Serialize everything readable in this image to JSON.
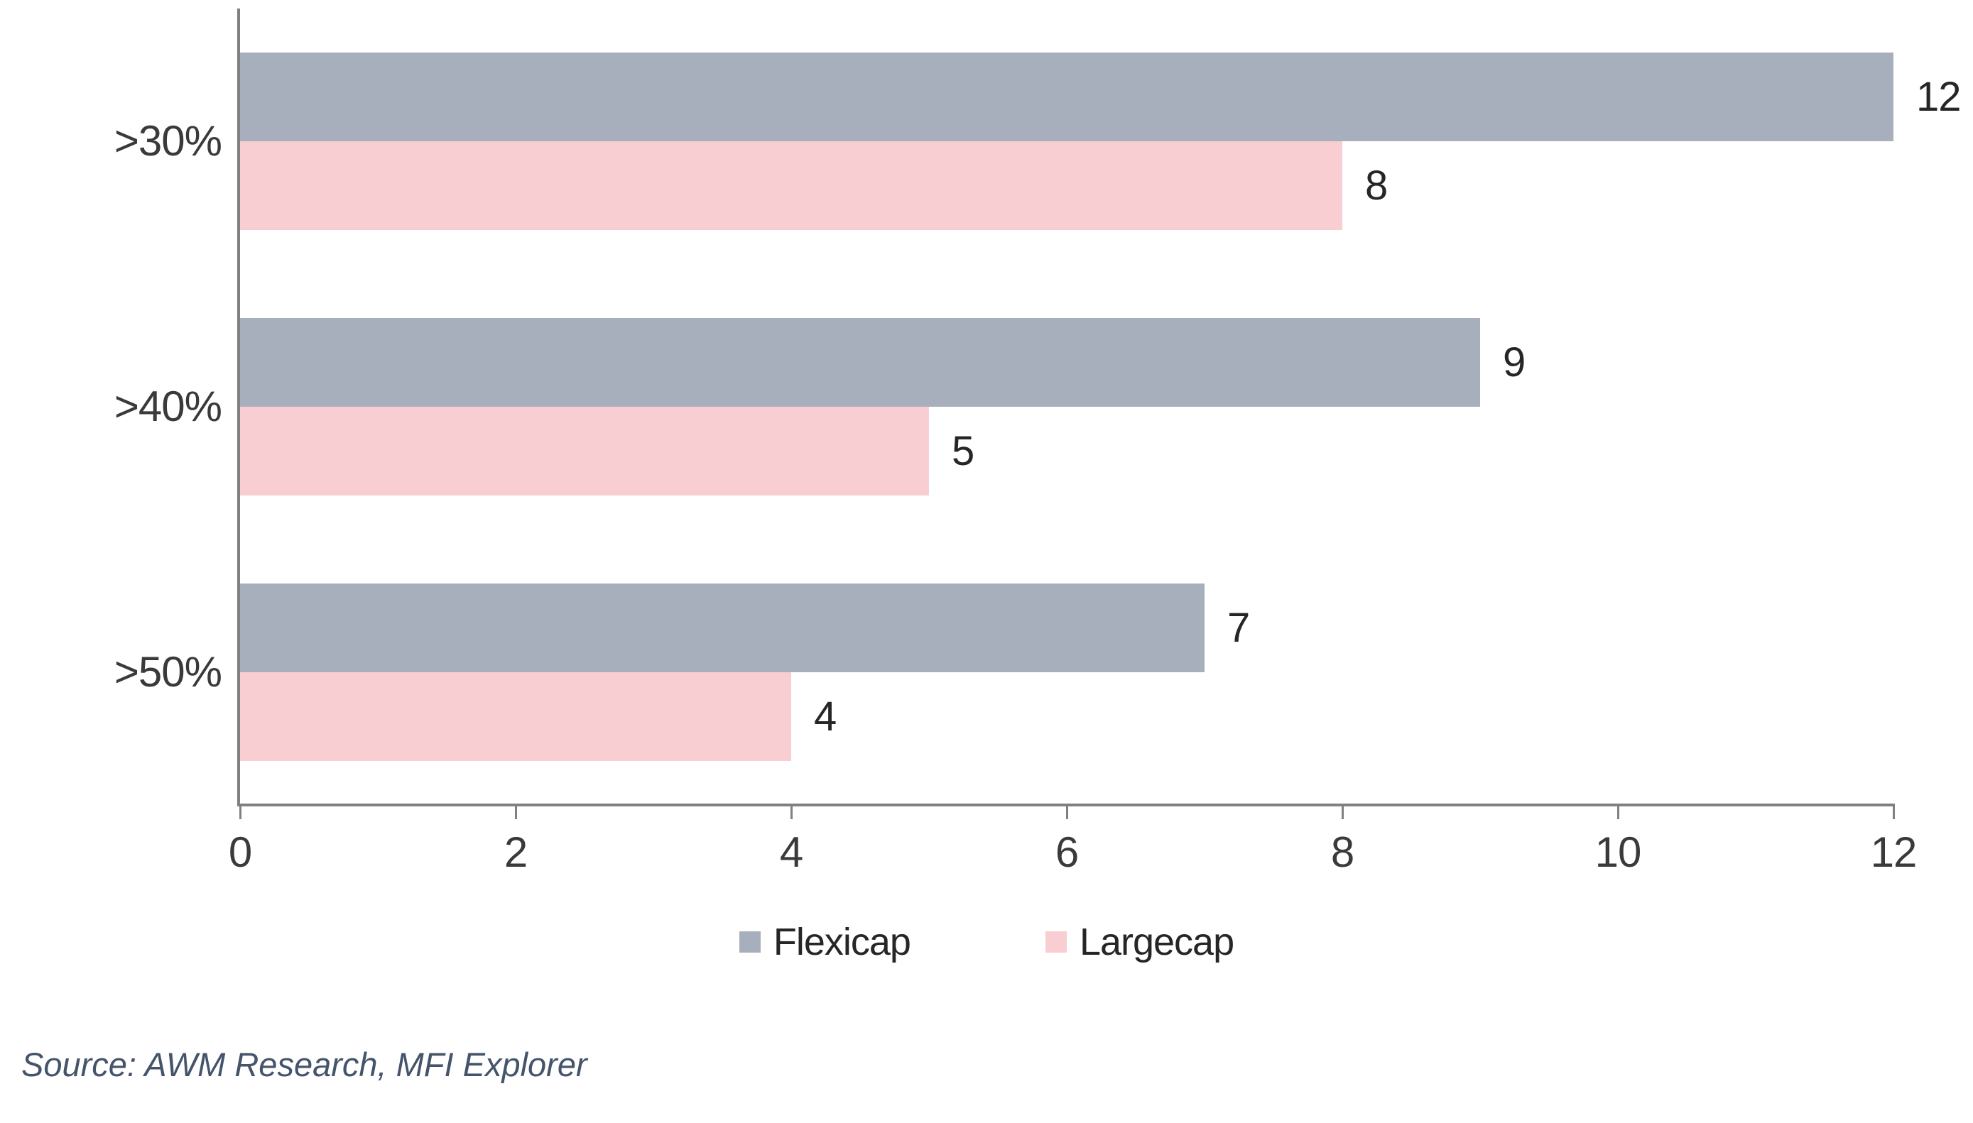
{
  "chart_data": {
    "type": "bar",
    "orientation": "horizontal",
    "title": "",
    "xlabel": "",
    "ylabel": "",
    "categories": [
      ">30%",
      ">40%",
      ">50%"
    ],
    "series": [
      {
        "name": "Flexicap",
        "color": "#a8afbc",
        "values": [
          12,
          9,
          7
        ]
      },
      {
        "name": "Largecap",
        "color": "#f8ced3",
        "values": [
          8,
          5,
          4
        ]
      }
    ],
    "xlim": [
      0,
      12
    ],
    "x_ticks": [
      0,
      2,
      4,
      6,
      8,
      10,
      12
    ],
    "data_labels": true,
    "grid": false,
    "legend_position": "bottom",
    "axis_color": "#808080",
    "label_color": "#262626",
    "tick_label_color": "#3a3a3a"
  },
  "footer": {
    "source": "Source: AWM Research, MFI Explorer",
    "source_color": "#44546a"
  }
}
